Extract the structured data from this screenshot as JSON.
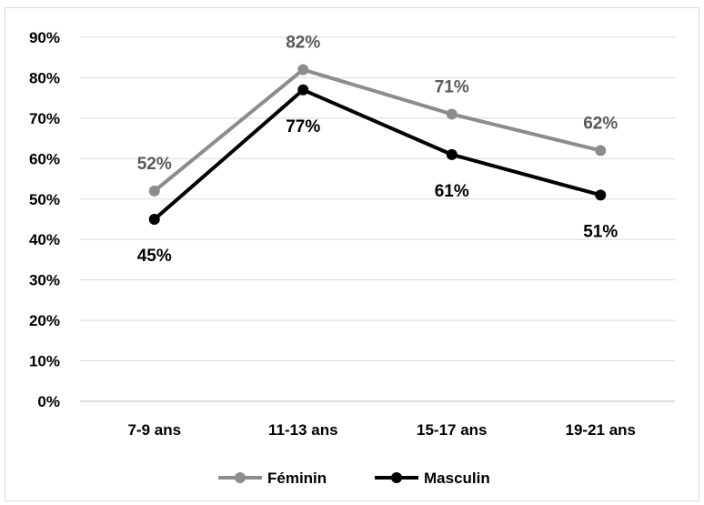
{
  "chart_data": {
    "type": "line",
    "categories": [
      "7-9 ans",
      "11-13 ans",
      "15-17 ans",
      "19-21 ans"
    ],
    "ylim": [
      0,
      90
    ],
    "yticks": [
      "0%",
      "10%",
      "20%",
      "30%",
      "40%",
      "50%",
      "60%",
      "70%",
      "80%",
      "90%"
    ],
    "grid": true,
    "legend_position": "bottom",
    "series": [
      {
        "name": "Féminin",
        "values": [
          52,
          82,
          71,
          62
        ],
        "labels": [
          "52%",
          "82%",
          "71%",
          "62%"
        ],
        "color": "#8c8c8c"
      },
      {
        "name": "Masculin",
        "values": [
          45,
          77,
          61,
          51
        ],
        "labels": [
          "45%",
          "77%",
          "61%",
          "51%"
        ],
        "color": "#000000"
      }
    ]
  }
}
